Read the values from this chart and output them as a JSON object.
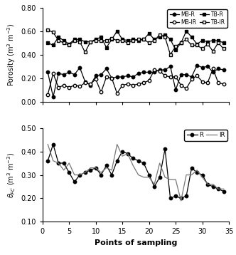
{
  "x": [
    1,
    2,
    3,
    4,
    5,
    6,
    7,
    8,
    9,
    10,
    11,
    12,
    13,
    14,
    15,
    16,
    17,
    18,
    19,
    20,
    21,
    22,
    23,
    24,
    25,
    26,
    27,
    28,
    29,
    30,
    31,
    32,
    33,
    34
  ],
  "MP_R": [
    0.25,
    0.04,
    0.24,
    0.23,
    0.25,
    0.23,
    0.29,
    0.17,
    0.14,
    0.22,
    0.23,
    0.28,
    0.2,
    0.21,
    0.21,
    0.22,
    0.21,
    0.24,
    0.25,
    0.25,
    0.25,
    0.27,
    0.27,
    0.3,
    0.1,
    0.23,
    0.23,
    0.21,
    0.31,
    0.29,
    0.3,
    0.25,
    0.28,
    0.27
  ],
  "MP_IR": [
    0.06,
    0.24,
    0.12,
    0.14,
    0.12,
    0.14,
    0.13,
    0.16,
    0.15,
    0.19,
    0.08,
    0.21,
    0.2,
    0.07,
    0.14,
    0.15,
    0.14,
    0.15,
    0.16,
    0.18,
    0.27,
    0.26,
    0.22,
    0.21,
    0.21,
    0.14,
    0.11,
    0.19,
    0.22,
    0.17,
    0.16,
    0.28,
    0.16,
    0.15
  ],
  "TP_R": [
    0.5,
    0.48,
    0.55,
    0.52,
    0.49,
    0.53,
    0.53,
    0.51,
    0.51,
    0.53,
    0.55,
    0.46,
    0.53,
    0.6,
    0.53,
    0.52,
    0.53,
    0.52,
    0.53,
    0.58,
    0.53,
    0.55,
    0.57,
    0.53,
    0.44,
    0.5,
    0.6,
    0.55,
    0.49,
    0.52,
    0.51,
    0.52,
    0.52,
    0.5
  ],
  "TP_IR": [
    0.61,
    0.59,
    0.52,
    0.5,
    0.48,
    0.52,
    0.51,
    0.42,
    0.51,
    0.52,
    0.52,
    0.52,
    0.54,
    0.52,
    0.52,
    0.5,
    0.52,
    0.53,
    0.53,
    0.5,
    0.52,
    0.57,
    0.55,
    0.4,
    0.47,
    0.5,
    0.53,
    0.48,
    0.48,
    0.45,
    0.49,
    0.43,
    0.5,
    0.45
  ],
  "FC_R": [
    0.36,
    0.43,
    0.35,
    0.35,
    0.31,
    0.27,
    0.3,
    0.31,
    0.32,
    0.33,
    0.3,
    0.34,
    0.3,
    0.36,
    0.4,
    0.39,
    0.37,
    0.36,
    0.35,
    0.3,
    0.25,
    0.29,
    0.41,
    0.2,
    0.21,
    0.2,
    0.21,
    0.33,
    0.31,
    0.3,
    0.26,
    0.25,
    0.24,
    0.23
  ],
  "FC_IR": [
    0.43,
    0.36,
    0.35,
    0.32,
    0.35,
    0.3,
    0.3,
    0.31,
    0.33,
    0.33,
    0.31,
    0.33,
    0.32,
    0.43,
    0.38,
    0.39,
    0.34,
    0.3,
    0.29,
    0.29,
    0.26,
    0.35,
    0.29,
    0.28,
    0.28,
    0.19,
    0.3,
    0.3,
    0.32,
    0.29,
    0.26,
    0.26,
    0.24,
    0.24
  ],
  "legend1_labels": [
    "MB-R",
    "MB-IR",
    "TB-R",
    "TB-IR"
  ],
  "legend2_labels": [
    "R",
    "IR"
  ],
  "ylabel1": "Porosity (m$^3$ m$^{-3}$)",
  "ylabel2": "$\\theta_{FC}$ (m$^3$ m$^{-3}$)",
  "xlabel": "Points of sampling",
  "ylim1": [
    0.0,
    0.8
  ],
  "ylim2": [
    0.1,
    0.5
  ],
  "yticks1": [
    0.0,
    0.2,
    0.4,
    0.6,
    0.8
  ],
  "yticks2": [
    0.1,
    0.2,
    0.3,
    0.4,
    0.5
  ],
  "black": "#000000",
  "gray": "#777777"
}
